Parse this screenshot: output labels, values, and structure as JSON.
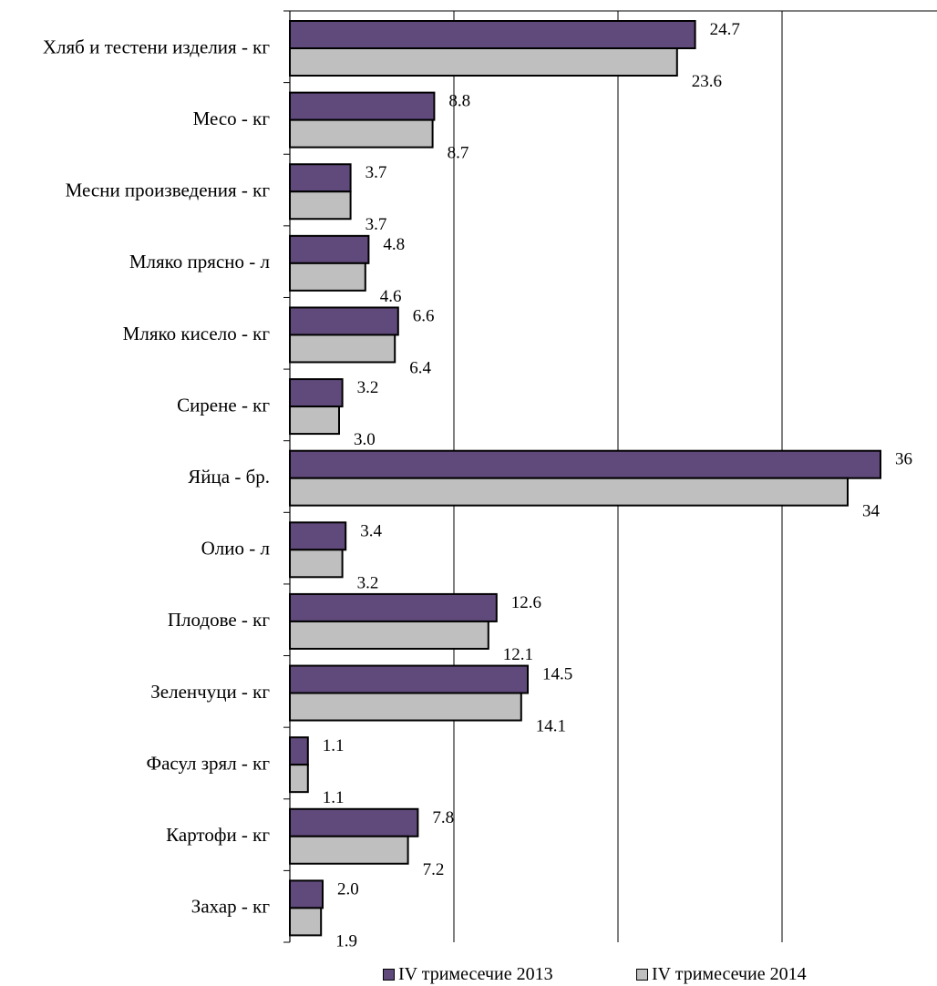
{
  "chart_data": {
    "type": "bar",
    "orientation": "horizontal",
    "categories": [
      "Хляб и тестени изделия - кг",
      "Месо - кг",
      "Месни произведения  - кг",
      "Мляко прясно - л",
      "Мляко кисело - кг",
      "Сирене - кг",
      "Яйца - бр.",
      "Олио - л",
      "Плодове - кг",
      "Зеленчуци - кг",
      "Фасул зрял - кг",
      "Картофи - кг",
      "Захар - кг"
    ],
    "series": [
      {
        "name": "IV тримесечие 2013",
        "color": "#604a7b",
        "values": [
          24.7,
          8.8,
          3.7,
          4.8,
          6.6,
          3.2,
          36,
          3.4,
          12.6,
          14.5,
          1.1,
          7.8,
          2.0
        ],
        "labels": [
          "24.7",
          "8.8",
          "3.7",
          "4.8",
          "6.6",
          "3.2",
          "36",
          "3.4",
          "12.6",
          "14.5",
          "1.1",
          "7.8",
          "2.0"
        ]
      },
      {
        "name": "IV тримесечие 2014",
        "color": "#bfbfbf",
        "values": [
          23.6,
          8.7,
          3.7,
          4.6,
          6.4,
          3.0,
          34,
          3.2,
          12.1,
          14.1,
          1.1,
          7.2,
          1.9
        ],
        "labels": [
          "23.6",
          "8.7",
          "3.7",
          "4.6",
          "6.4",
          "3.0",
          "34",
          "3.2",
          "12.1",
          "14.1",
          "1.1",
          "7.2",
          "1.9"
        ]
      }
    ],
    "xlim": [
      0,
      40
    ],
    "gridlines": [
      10,
      20,
      30,
      40
    ],
    "grid": true,
    "legend_position": "bottom"
  }
}
